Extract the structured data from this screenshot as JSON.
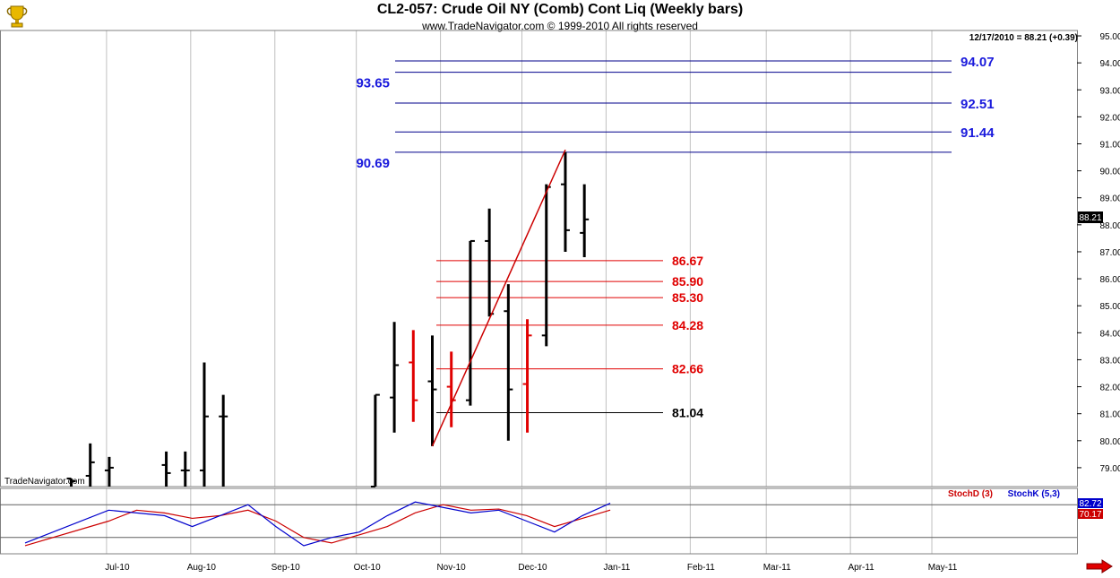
{
  "header": {
    "title": "CL2-057:  Crude Oil NY (Comb) Cont Liq  (Weekly bars)",
    "subtitle": "www.TradeNavigator.com © 1999-2010 All rights reserved"
  },
  "watermark": "TradeNavigator.com",
  "quote": "12/17/2010 = 88.21 (+0.39)",
  "last_price_label": "88.21",
  "indicator": {
    "stochD_label": "StochD (3)",
    "stochK_label": "StochK (5,3)",
    "stochK_value": "82.72",
    "stochD_value": "70.17"
  },
  "colors": {
    "up_bar": "#000000",
    "down_bar": "#e00000",
    "trend_line": "#cc0000",
    "blue_level": "#00008b",
    "red_level": "#e00000",
    "stochK": "#0000cc",
    "stochD": "#cc0000"
  },
  "chart_data": {
    "type": "ohlc",
    "title": "CL2-057:  Crude Oil NY (Comb) Cont Liq  (Weekly bars)",
    "y_ticks": [
      "95.00",
      "94.00",
      "93.00",
      "92.00",
      "91.00",
      "90.00",
      "89.00",
      "88.00",
      "87.00",
      "86.00",
      "85.00",
      "84.00",
      "83.00",
      "82.00",
      "81.00",
      "80.00",
      "79.00"
    ],
    "ylim": [
      78.3,
      95.2
    ],
    "x_tick_labels": [
      "Jul-10",
      "Aug-10",
      "Sep-10",
      "Oct-10",
      "Nov-10",
      "Dec-10",
      "Jan-11",
      "Feb-11",
      "Mar-11",
      "Apr-11",
      "May-11"
    ],
    "bars": [
      {
        "week": "2010-06-18",
        "o": 78.6,
        "h": 78.6,
        "l": 78.3,
        "c": 78.5,
        "down": false
      },
      {
        "week": "2010-06-25",
        "o": 78.7,
        "h": 79.9,
        "l": 78.3,
        "c": 79.2,
        "down": false
      },
      {
        "week": "2010-07-02",
        "o": 78.9,
        "h": 79.4,
        "l": 78.3,
        "c": 79.0,
        "down": false
      },
      {
        "week": "2010-07-23",
        "o": 79.1,
        "h": 79.6,
        "l": 78.3,
        "c": 78.8,
        "down": false
      },
      {
        "week": "2010-07-30",
        "o": 78.9,
        "h": 79.6,
        "l": 78.3,
        "c": 78.9,
        "down": false
      },
      {
        "week": "2010-08-06",
        "o": 78.9,
        "h": 82.9,
        "l": 78.3,
        "c": 80.9,
        "down": false
      },
      {
        "week": "2010-08-13",
        "o": 80.9,
        "h": 81.7,
        "l": 78.3,
        "c": 80.9,
        "down": false
      },
      {
        "week": "2010-10-08",
        "o": 78.3,
        "h": 81.7,
        "l": 78.3,
        "c": 81.7,
        "down": false
      },
      {
        "week": "2010-10-15",
        "o": 81.6,
        "h": 84.4,
        "l": 80.3,
        "c": 82.8,
        "down": false
      },
      {
        "week": "2010-10-22",
        "o": 82.9,
        "h": 84.1,
        "l": 80.7,
        "c": 81.5,
        "down": true
      },
      {
        "week": "2010-10-29",
        "o": 82.2,
        "h": 83.9,
        "l": 79.8,
        "c": 81.9,
        "down": false
      },
      {
        "week": "2010-11-05",
        "o": 82.0,
        "h": 83.3,
        "l": 80.5,
        "c": 81.5,
        "down": true
      },
      {
        "week": "2010-11-12",
        "o": 81.5,
        "h": 87.4,
        "l": 81.3,
        "c": 87.4,
        "down": false
      },
      {
        "week": "2010-11-19",
        "o": 87.4,
        "h": 88.6,
        "l": 84.6,
        "c": 84.7,
        "down": false
      },
      {
        "week": "2010-11-26",
        "o": 84.8,
        "h": 85.8,
        "l": 80.0,
        "c": 81.9,
        "down": false
      },
      {
        "week": "2010-12-03",
        "o": 82.1,
        "h": 84.5,
        "l": 80.3,
        "c": 83.9,
        "down": true
      },
      {
        "week": "2010-12-10",
        "o": 83.9,
        "h": 89.5,
        "l": 83.5,
        "c": 89.4,
        "down": false
      },
      {
        "week": "2010-12-17",
        "o": 89.5,
        "h": 90.7,
        "l": 87.0,
        "c": 87.8,
        "down": false
      },
      {
        "week": "2010-12-24",
        "o": 87.7,
        "h": 89.5,
        "l": 86.8,
        "c": 88.2,
        "down": false
      }
    ],
    "trend_line": {
      "from": {
        "week": "2010-10-29",
        "price": 79.8
      },
      "to": {
        "week": "2010-12-17",
        "price": 90.78
      }
    },
    "blue_levels": [
      {
        "price": 94.07,
        "label": "94.07",
        "side": "right"
      },
      {
        "price": 93.65,
        "label": "93.65",
        "side": "left"
      },
      {
        "price": 92.51,
        "label": "92.51",
        "side": "right"
      },
      {
        "price": 91.44,
        "label": "91.44",
        "side": "right"
      },
      {
        "price": 90.69,
        "label": "90.69",
        "side": "left"
      }
    ],
    "red_levels": [
      {
        "price": 86.67,
        "label": "86.67"
      },
      {
        "price": 85.9,
        "label": "85.90"
      },
      {
        "price": 85.3,
        "label": "85.30"
      },
      {
        "price": 84.28,
        "label": "84.28"
      },
      {
        "price": 82.66,
        "label": "82.66"
      }
    ],
    "black_level": {
      "price": 81.04,
      "label": "81.04"
    },
    "stochastic": {
      "ylim": [
        0,
        100
      ],
      "stochK": [
        [
          0,
          10
        ],
        [
          3,
          70
        ],
        [
          5,
          60
        ],
        [
          6,
          40
        ],
        [
          7,
          60
        ],
        [
          8,
          80
        ],
        [
          9,
          40
        ],
        [
          10,
          5
        ],
        [
          11,
          20
        ],
        [
          12,
          30
        ],
        [
          13,
          60
        ],
        [
          14,
          85
        ],
        [
          15,
          75
        ],
        [
          16,
          65
        ],
        [
          17,
          70
        ],
        [
          18,
          50
        ],
        [
          19,
          30
        ],
        [
          20,
          60
        ],
        [
          21,
          82.72
        ]
      ],
      "stochD": [
        [
          0,
          5
        ],
        [
          3,
          50
        ],
        [
          4,
          70
        ],
        [
          5,
          65
        ],
        [
          6,
          55
        ],
        [
          7,
          60
        ],
        [
          8,
          70
        ],
        [
          9,
          50
        ],
        [
          10,
          20
        ],
        [
          11,
          10
        ],
        [
          13,
          40
        ],
        [
          14,
          65
        ],
        [
          15,
          80
        ],
        [
          16,
          70
        ],
        [
          17,
          72
        ],
        [
          18,
          60
        ],
        [
          19,
          40
        ],
        [
          20,
          55
        ],
        [
          21,
          70.17
        ]
      ]
    }
  }
}
